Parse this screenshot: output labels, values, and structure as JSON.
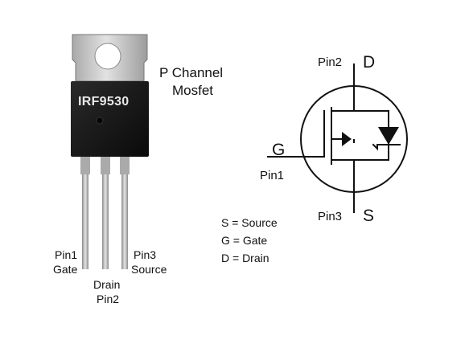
{
  "package": {
    "part_number": "IRF9530",
    "pin1": {
      "number": "Pin1",
      "name": "Gate"
    },
    "pin2": {
      "name": "Drain",
      "number": "Pin2"
    },
    "pin3": {
      "number": "Pin3",
      "name": "Source"
    }
  },
  "title": {
    "line1": "P Channel",
    "line2": "Mosfet"
  },
  "symbol": {
    "top": {
      "pin": "Pin2",
      "letter": "D"
    },
    "gate": {
      "letter": "G",
      "pin": "Pin1"
    },
    "bottom": {
      "pin": "Pin3",
      "letter": "S"
    }
  },
  "legend": [
    "S = Source",
    "G = Gate",
    "D = Drain"
  ],
  "colors": {
    "tab_metal": "#c9c9c9",
    "body": "#141414",
    "leads": "#bdbdbd",
    "stroke": "#111111",
    "marking": "#e8e8e8"
  }
}
